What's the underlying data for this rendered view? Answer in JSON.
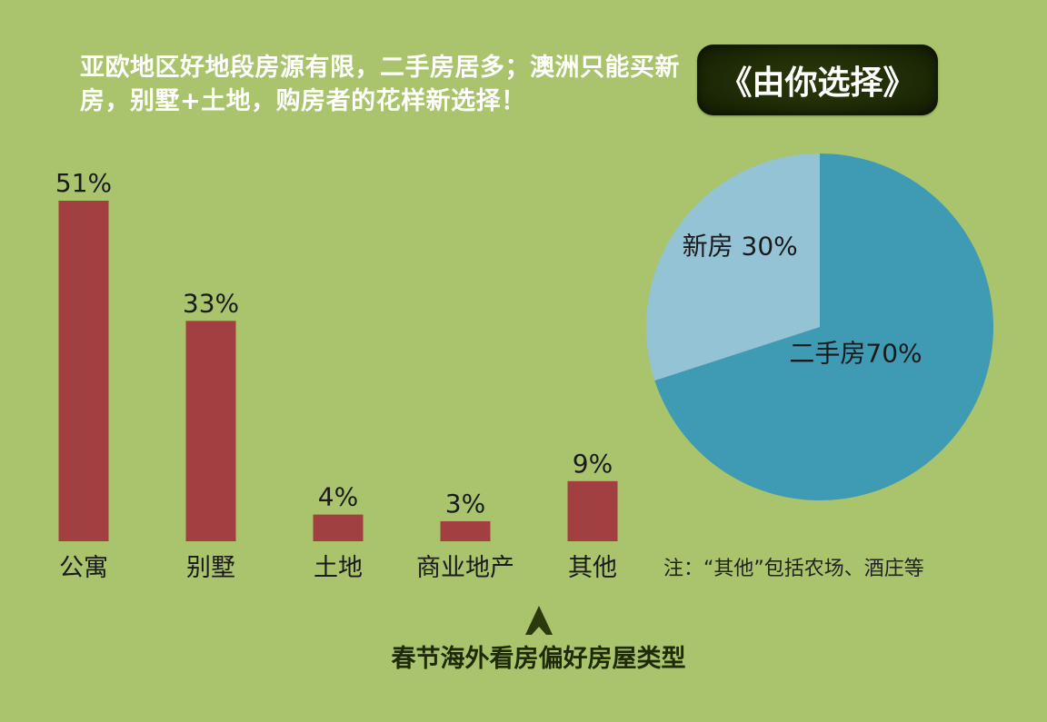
{
  "headline": "亚欧地区好地段房源有限，二手房居多；澳洲只能买新房，别墅+土地，购房者的花样新选择！",
  "badge": "《由你选择》",
  "note": "注：“其他”包括农场、酒庄等",
  "caption": "春节海外看房偏好房屋类型",
  "colors": {
    "background": "#a9c46c",
    "bar": "#a13f41",
    "pie_second_hand": "#3f9ab3",
    "pie_new": "#93c3d4"
  },
  "chart_data": [
    {
      "type": "bar",
      "categories": [
        "公寓",
        "别墅",
        "土地",
        "商业地产",
        "其他"
      ],
      "values": [
        51,
        33,
        4,
        3,
        9
      ],
      "data_labels": [
        "51%",
        "33%",
        "4%",
        "3%",
        "9%"
      ],
      "title": "春节海外看房偏好房屋类型",
      "ylim": [
        0,
        51
      ]
    },
    {
      "type": "pie",
      "slices": [
        {
          "label": "二手房70%",
          "value": 70,
          "color": "#3f9ab3"
        },
        {
          "label": "新房  30%",
          "value": 30,
          "color": "#93c3d4"
        }
      ]
    }
  ]
}
